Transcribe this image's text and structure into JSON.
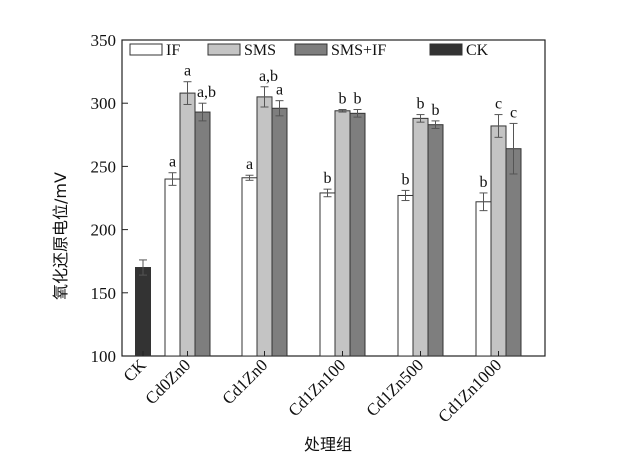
{
  "chart_data": {
    "type": "bar",
    "xlabel": "处理组",
    "ylabel": "氧化还原电位/mV",
    "ylim": [
      100,
      350
    ],
    "yticks": [
      100,
      150,
      200,
      250,
      300,
      350
    ],
    "grid": false,
    "legend_position": "top",
    "categories": [
      "CK",
      "Cd0Zn0",
      "Cd1Zn0",
      "Cd1Zn100",
      "Cd1Zn500",
      "Cd1Zn1000"
    ],
    "series": [
      {
        "name": "IF",
        "color": "#ffffff",
        "values": [
          null,
          240,
          241,
          229,
          227,
          222
        ],
        "errors": [
          null,
          5,
          2,
          3,
          4,
          7
        ],
        "labels": [
          "",
          "a",
          "a",
          "b",
          "b",
          "b"
        ]
      },
      {
        "name": "SMS",
        "color": "#c4c4c4",
        "values": [
          null,
          308,
          305,
          294,
          288,
          282
        ],
        "errors": [
          null,
          9,
          8,
          1,
          3,
          9
        ],
        "labels": [
          "",
          "a",
          "a,b",
          "b",
          "b",
          "c"
        ]
      },
      {
        "name": "SMS+IF",
        "color": "#7e7e7e",
        "values": [
          null,
          293,
          296,
          292,
          283,
          264
        ],
        "errors": [
          null,
          7,
          6,
          3,
          3,
          20
        ],
        "labels": [
          "",
          "a,b",
          "a",
          "b",
          "b",
          "c"
        ]
      },
      {
        "name": "CK",
        "color": "#333333",
        "values": [
          170,
          null,
          null,
          null,
          null,
          null
        ],
        "errors": [
          6,
          null,
          null,
          null,
          null,
          null
        ],
        "labels": [
          "",
          "",
          "",
          "",
          "",
          ""
        ]
      }
    ]
  }
}
